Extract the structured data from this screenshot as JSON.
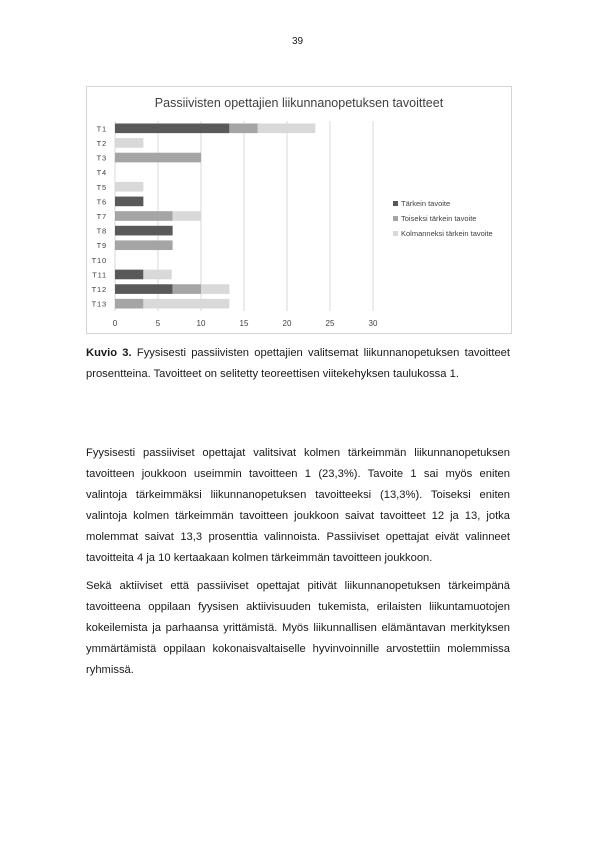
{
  "page": {
    "number": "39",
    "caption_label": "Kuvio 3.",
    "caption_text": " Fyysisesti passiivisten opettajien valitsemat liikunnanopetuksen tavoitteet prosentteina. Tavoitteet on selitetty teoreettisen viitekehyksen taulukossa 1.",
    "paragraphs": [
      "Fyysisesti passiiviset opettajat valitsivat kolmen tärkeimmän liikunnanopetuksen tavoitteen joukkoon useimmin tavoitteen 1 (23,3%). Tavoite 1 sai myös eniten valintoja tärkeimmäksi liikunnanopetuksen tavoitteeksi (13,3%). Toiseksi eniten valintoja kolmen tärkeimmän tavoitteen joukkoon saivat tavoitteet 12 ja 13, jotka molemmat saivat 13,3 prosenttia valinnoista. Passiiviset opettajat eivät valinneet tavoitteita 4 ja 10 kertaakaan kolmen tärkeimmän tavoitteen joukkoon.",
      "Sekä aktiiviset että passiiviset opettajat pitivät liikunnanopetuksen tärkeimpänä tavoitteena oppilaan fyysisen aktiivisuuden tukemista, erilaisten liikuntamuotojen kokeilemista ja parhaansa yrittämistä. Myös liikunnallisen elämäntavan merkityksen ymmärtämistä oppilaan kokonaisvaltaiselle hyvinvoinnille arvostettiin molemmissa ryhmissä."
    ]
  },
  "chart_data": {
    "type": "bar",
    "orientation": "horizontal",
    "stacked": true,
    "title": "Passiivisten opettajien liikunnanopetuksen tavoitteet",
    "categories": [
      "T1",
      "T2",
      "T3",
      "T4",
      "T5",
      "T6",
      "T7",
      "T8",
      "T9",
      "T10",
      "T11",
      "T12",
      "T13"
    ],
    "series": [
      {
        "name": "Tärkein tavoite",
        "color": "#595959",
        "values": [
          13.3,
          0,
          0,
          0,
          0,
          3.3,
          0,
          6.7,
          0,
          0,
          3.3,
          6.7,
          0
        ]
      },
      {
        "name": "Toiseksi tärkein tavoite",
        "color": "#a5a5a5",
        "values": [
          3.3,
          0,
          10.0,
          0,
          0,
          0,
          6.7,
          0,
          6.7,
          0,
          0,
          3.3,
          3.3
        ]
      },
      {
        "name": "Kolmanneksi tärkein tavoite",
        "color": "#d9d9d9",
        "values": [
          6.7,
          3.3,
          0,
          0,
          3.3,
          0,
          3.3,
          0,
          0,
          0,
          3.3,
          3.3,
          10.0
        ]
      }
    ],
    "xlim": [
      0,
      30
    ],
    "xticks": [
      "0",
      "5",
      "10",
      "15",
      "20",
      "25",
      "30"
    ],
    "grid": true,
    "legend_position": "right"
  }
}
